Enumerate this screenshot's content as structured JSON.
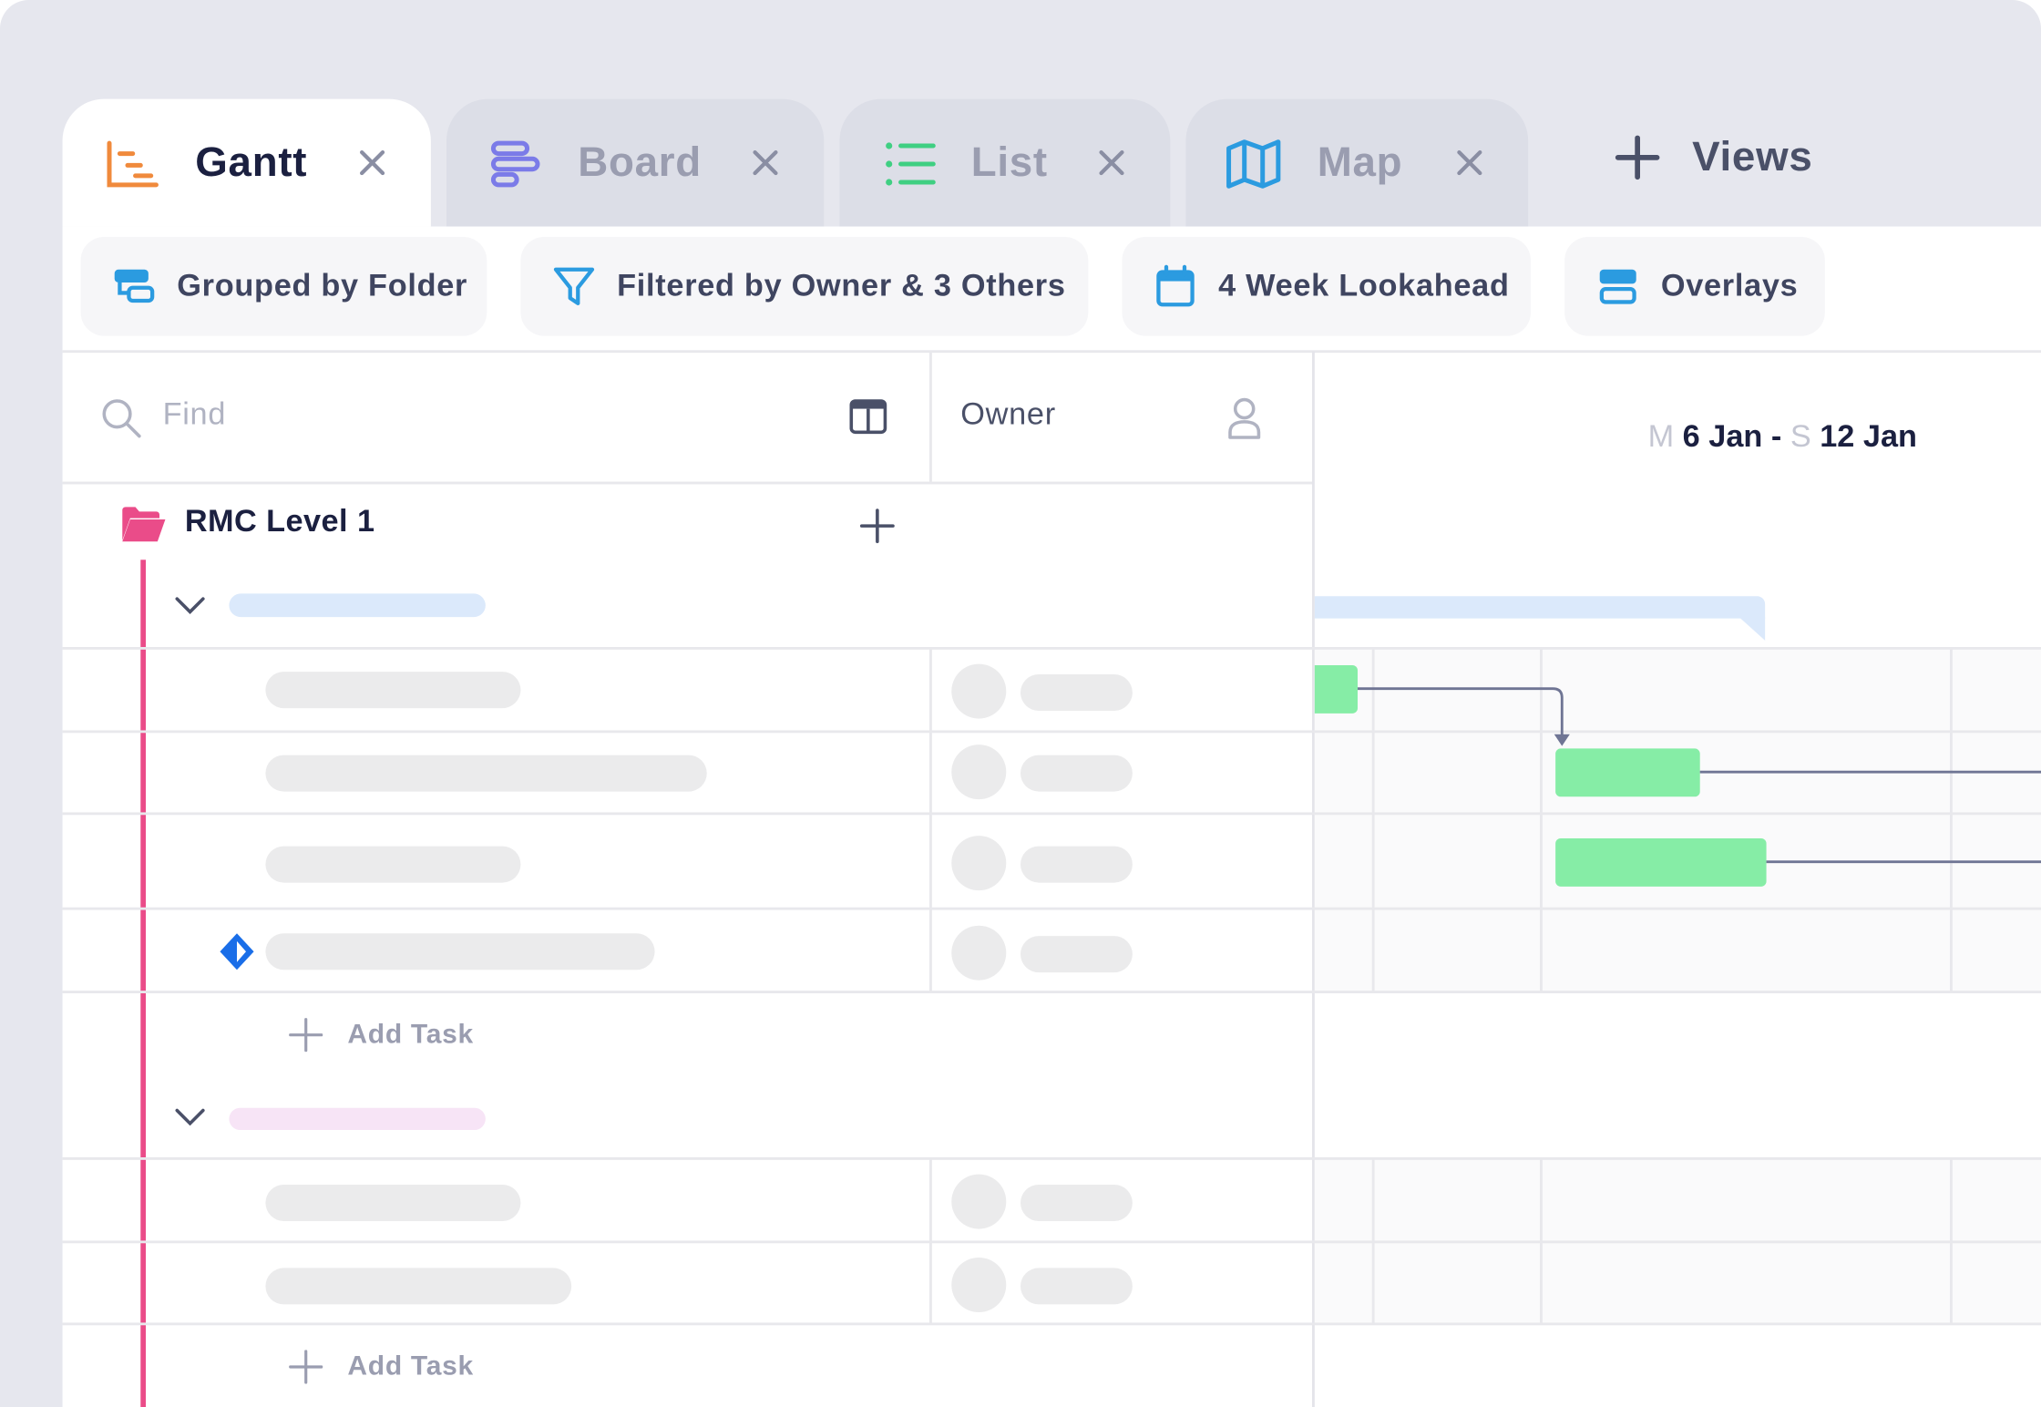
{
  "tabs": [
    {
      "label": "Gantt",
      "icon": "gantt-icon",
      "active": true,
      "color": "#f08a3c"
    },
    {
      "label": "Board",
      "icon": "board-icon",
      "active": false,
      "color": "#7b7be8"
    },
    {
      "label": "List",
      "icon": "list-icon",
      "active": false,
      "color": "#3fcf82"
    },
    {
      "label": "Map",
      "icon": "map-icon",
      "active": false,
      "color": "#2b9be0"
    }
  ],
  "views_label": "Views",
  "toolbar": {
    "grouped": "Grouped by Folder",
    "filtered": "Filtered by Owner & 3 Others",
    "lookahead": "4 Week Lookahead",
    "overlays": "Overlays"
  },
  "grid": {
    "find_placeholder": "Find",
    "owner_header": "Owner",
    "date_day_start": "M",
    "date_start": "6 Jan -",
    "date_day_end": "S",
    "date_end": "12 Jan"
  },
  "folder": {
    "name": "RMC Level 1",
    "color": "#ea4c89"
  },
  "add_task_label": "Add Task",
  "colors": {
    "accent": "#1b2040",
    "bar_green": "#86eda6",
    "group_blue": "#dbe9fb",
    "group_pink": "#f7e4f6"
  }
}
